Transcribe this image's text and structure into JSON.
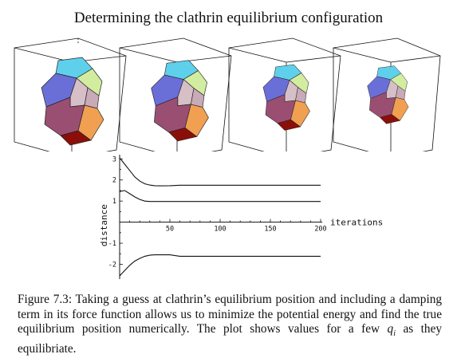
{
  "figure": {
    "title": "Determining the clathrin equilibrium configuration",
    "caption_prefix": "Figure 7.3: Taking a guess at clathrin’s equilibrium position and including a damping term in its force function allows us to minimize the potential energy and find the true equilibrium position numerically. The plot shows values for a few",
    "caption_symbol": "q",
    "caption_subscript": "i",
    "caption_suffix": "as they equilibriate."
  },
  "colors": {
    "top": "#5fd0ec",
    "left": "#6a6fd8",
    "front_left": "#9a4f72",
    "front_right": "#f0a050",
    "right_top": "#d2eda0",
    "center": "#d6bfc6",
    "center_dark": "#c9aab8",
    "bottom": "#8b0f08",
    "curve": "#111111"
  },
  "chart_data": {
    "type": "line",
    "title": "",
    "xlabel": "iterations",
    "ylabel": "distance",
    "xlim": [
      0,
      200
    ],
    "ylim": [
      -2.7,
      3.2
    ],
    "x_ticks": [
      50,
      100,
      150,
      200
    ],
    "y_ticks": [
      3,
      2,
      1,
      -1,
      -2
    ],
    "grid": false,
    "series": [
      {
        "x": [
          0,
          5,
          10,
          15,
          20,
          25,
          30,
          35,
          40,
          50,
          60,
          80,
          100,
          150,
          200
        ],
        "y": [
          3.05,
          2.75,
          2.45,
          2.15,
          1.95,
          1.82,
          1.76,
          1.73,
          1.72,
          1.73,
          1.75,
          1.75,
          1.75,
          1.75,
          1.75
        ]
      },
      {
        "x": [
          0,
          5,
          10,
          15,
          20,
          25,
          30,
          40,
          50,
          100,
          150,
          200
        ],
        "y": [
          1.45,
          1.5,
          1.35,
          1.2,
          1.08,
          1.0,
          0.98,
          0.98,
          0.98,
          0.98,
          0.98,
          0.98
        ]
      },
      {
        "x": [
          0,
          5,
          10,
          15,
          20,
          25,
          30,
          35,
          40,
          50,
          60,
          80,
          100,
          150,
          200
        ],
        "y": [
          -2.55,
          -2.3,
          -2.05,
          -1.85,
          -1.72,
          -1.62,
          -1.57,
          -1.55,
          -1.55,
          -1.55,
          -1.62,
          -1.62,
          -1.62,
          -1.62,
          -1.62
        ]
      }
    ]
  }
}
